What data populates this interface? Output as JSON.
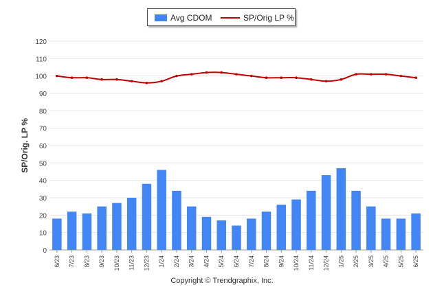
{
  "legend": {
    "bar_label": "Avg CDOM",
    "line_label": "SP/Orig LP %"
  },
  "copyright": "Copyright © Trendgraphix, Inc.",
  "chart_data": {
    "type": "bar",
    "categories": [
      "6/23",
      "7/23",
      "8/23",
      "9/23",
      "10/23",
      "11/23",
      "12/23",
      "1/24",
      "2/24",
      "3/24",
      "4/24",
      "5/24",
      "6/24",
      "7/24",
      "8/24",
      "9/24",
      "10/24",
      "11/24",
      "12/24",
      "1/25",
      "2/25",
      "3/25",
      "4/25",
      "5/25",
      "6/25"
    ],
    "series": [
      {
        "name": "Avg CDOM",
        "type": "bar",
        "color": "#4285f4",
        "values": [
          18,
          22,
          21,
          25,
          27,
          30,
          38,
          46,
          34,
          25,
          19,
          17,
          14,
          18,
          22,
          26,
          29,
          34,
          43,
          47,
          34,
          25,
          18,
          18,
          21
        ]
      },
      {
        "name": "SP/Orig LP %",
        "type": "line",
        "color": "#c00000",
        "values": [
          100,
          99,
          99,
          98,
          98,
          97,
          96,
          97,
          100,
          101,
          102,
          102,
          101,
          100,
          99,
          99,
          99,
          98,
          97,
          98,
          101,
          101,
          101,
          100,
          99
        ]
      }
    ],
    "ylabel": "SP/Orig. LP %",
    "ylim": [
      0,
      120
    ],
    "yticks": [
      0,
      10,
      20,
      30,
      40,
      50,
      60,
      70,
      80,
      90,
      100,
      110,
      120
    ],
    "grid": true,
    "legend_position": "top"
  }
}
